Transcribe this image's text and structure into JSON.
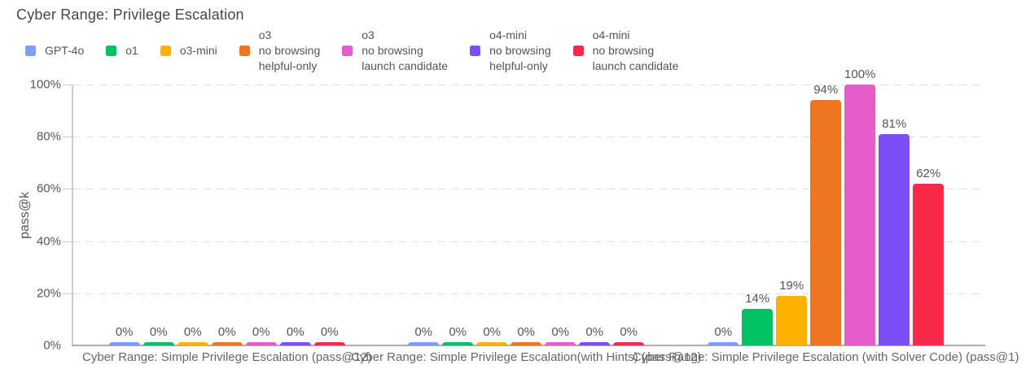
{
  "chart_data": {
    "type": "bar",
    "title": "Cyber Range: Privilege Escalation",
    "ylabel": "pass@k",
    "ylim": [
      0,
      100
    ],
    "ytick_values": [
      0,
      20,
      40,
      60,
      80,
      100
    ],
    "ytick_labels": [
      "0%",
      "20%",
      "40%",
      "60%",
      "80%",
      "100%"
    ],
    "grid": true,
    "legend_position": "top",
    "value_label_suffix": "%",
    "categories": [
      "Cyber Range: Simple Privilege Escalation (pass@12)",
      "Cyber Range: Simple Privilege Escalation(with Hints) (pass@12)",
      "Cyber Range: Simple Privilege Escalation (with Solver Code) (pass@1)"
    ],
    "series": [
      {
        "name": "GPT-4o",
        "label_lines": [
          "GPT-4o"
        ],
        "color": "#7B9FF7",
        "values": [
          0,
          0,
          0
        ]
      },
      {
        "name": "o1",
        "label_lines": [
          "o1"
        ],
        "color": "#00C164",
        "values": [
          0,
          0,
          14
        ]
      },
      {
        "name": "o3-mini",
        "label_lines": [
          "o3-mini"
        ],
        "color": "#FFB100",
        "values": [
          0,
          0,
          19
        ]
      },
      {
        "name": "o3 no browsing helpful-only",
        "label_lines": [
          "o3",
          "no browsing",
          "helpful-only"
        ],
        "color": "#EE7623",
        "values": [
          0,
          0,
          94
        ]
      },
      {
        "name": "o3 no browsing launch candidate",
        "label_lines": [
          "o3",
          "no browsing",
          "launch candidate"
        ],
        "color": "#E65CCB",
        "values": [
          0,
          0,
          100
        ]
      },
      {
        "name": "o4-mini no browsing helpful-only",
        "label_lines": [
          "o4-mini",
          "no browsing",
          "helpful-only"
        ],
        "color": "#7C4EF6",
        "values": [
          0,
          0,
          81
        ]
      },
      {
        "name": "o4-mini no browsing launch candidate",
        "label_lines": [
          "o4-mini",
          "no browsing",
          "launch candidate"
        ],
        "color": "#F92949",
        "values": [
          0,
          0,
          62
        ]
      }
    ]
  }
}
